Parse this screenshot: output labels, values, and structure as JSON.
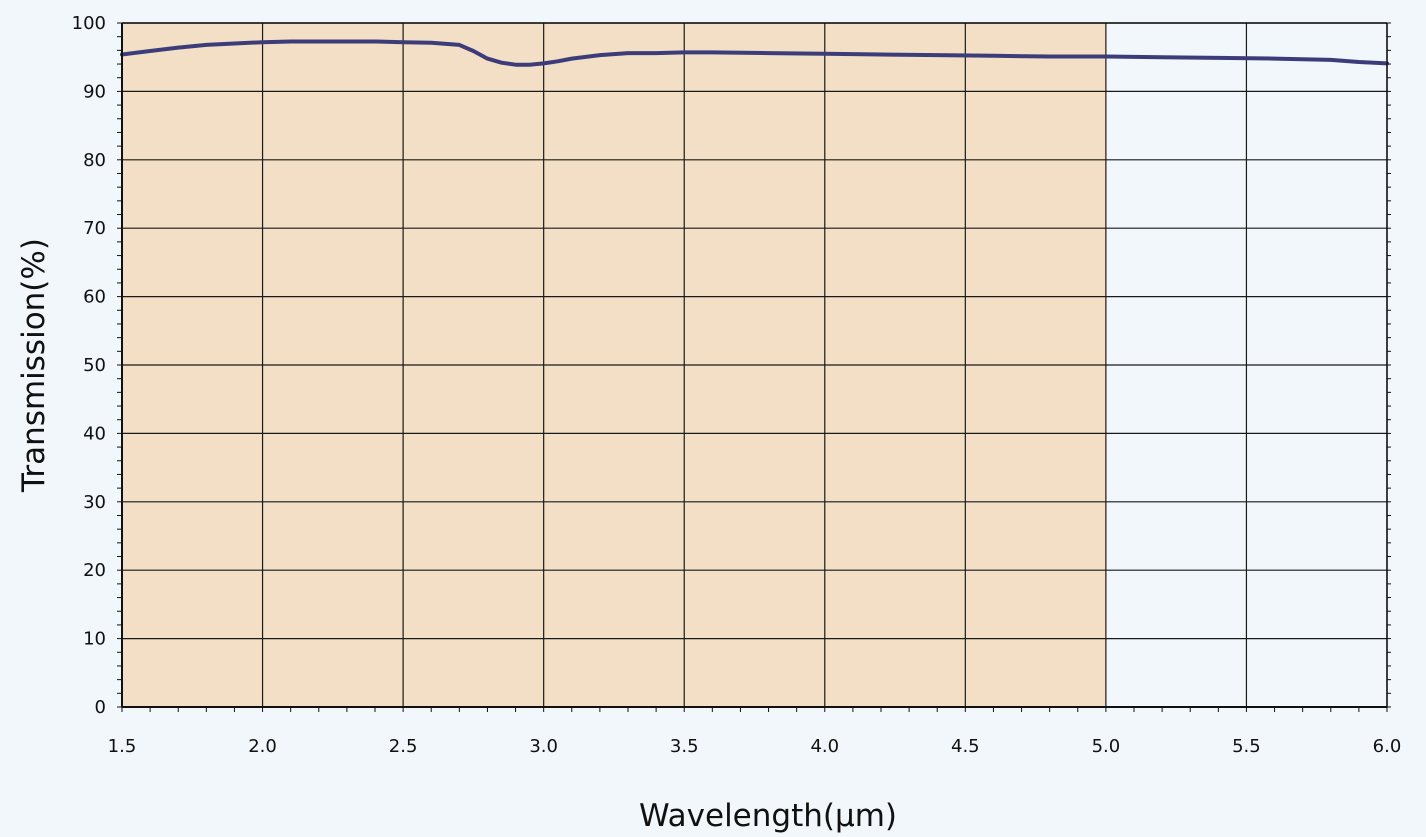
{
  "chart_data": {
    "type": "line",
    "title": "",
    "xlabel": "Wavelength(μm)",
    "ylabel": "Transmission(%)",
    "xlim": [
      1.5,
      6.0
    ],
    "ylim": [
      0,
      100
    ],
    "x_ticks": [
      "1.5",
      "2.0",
      "2.5",
      "3.0",
      "3.5",
      "4.0",
      "4.5",
      "5.0",
      "5.5",
      "6.0"
    ],
    "y_ticks": [
      "0",
      "10",
      "20",
      "30",
      "40",
      "50",
      "60",
      "70",
      "80",
      "90",
      "100"
    ],
    "grid": true,
    "highlight_band": {
      "x_range": [
        1.5,
        5.0
      ],
      "color": "#f2dfc6"
    },
    "series": [
      {
        "color": "#3d3c7a",
        "x": [
          1.5,
          1.6,
          1.7,
          1.8,
          1.9,
          2.0,
          2.1,
          2.2,
          2.3,
          2.4,
          2.5,
          2.6,
          2.7,
          2.75,
          2.8,
          2.85,
          2.9,
          2.95,
          3.0,
          3.05,
          3.1,
          3.2,
          3.3,
          3.4,
          3.5,
          3.6,
          3.8,
          4.0,
          4.2,
          4.4,
          4.6,
          4.8,
          5.0,
          5.2,
          5.4,
          5.6,
          5.8,
          5.9,
          6.0
        ],
        "y": [
          95.4,
          95.9,
          96.4,
          96.8,
          97.0,
          97.2,
          97.3,
          97.3,
          97.3,
          97.3,
          97.2,
          97.1,
          96.8,
          95.9,
          94.8,
          94.2,
          93.9,
          93.9,
          94.1,
          94.4,
          94.8,
          95.3,
          95.6,
          95.6,
          95.7,
          95.7,
          95.6,
          95.5,
          95.4,
          95.3,
          95.2,
          95.1,
          95.1,
          95.0,
          94.9,
          94.8,
          94.6,
          94.3,
          94.1
        ]
      }
    ]
  }
}
